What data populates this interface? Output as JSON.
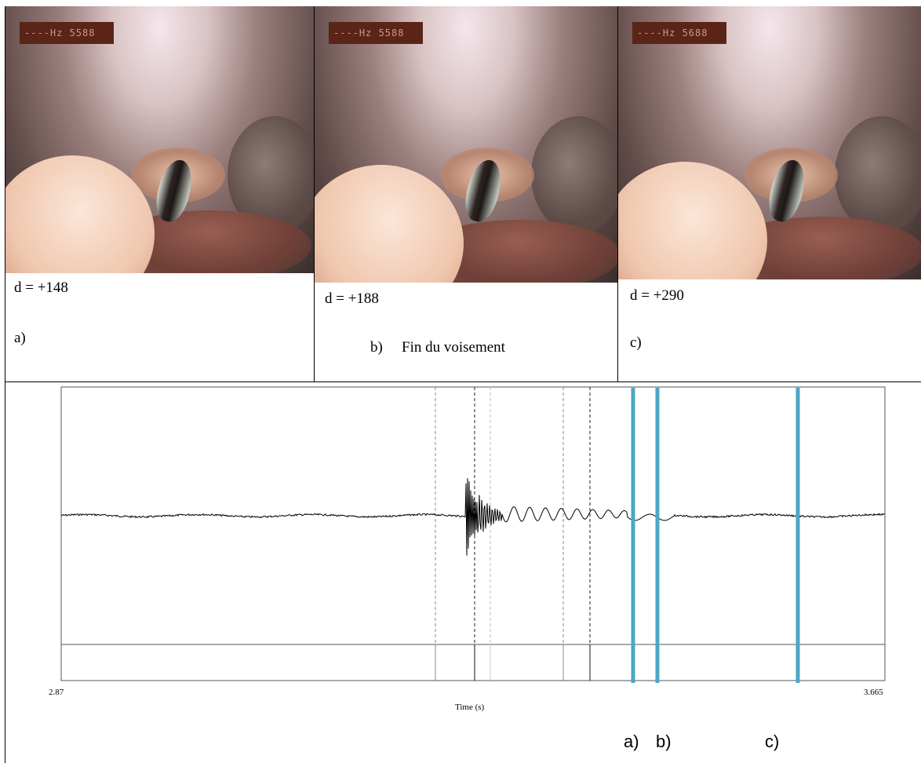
{
  "panels": [
    {
      "osd": "----Hz 5588",
      "d": "d = +148",
      "label": "a)",
      "extra": ""
    },
    {
      "osd": "----Hz 5588",
      "d": "d = +188",
      "label": "b)",
      "extra": "Fin du voisement"
    },
    {
      "osd": "----Hz 5688",
      "d": "d = +290",
      "label": "c)",
      "extra": ""
    }
  ],
  "waveform": {
    "x_min_label": "2.87",
    "x_max_label": "3.665",
    "xlabel": "Time (s)"
  },
  "marker_labels": {
    "a": "a)",
    "b": "b)",
    "c": "c)"
  },
  "colors": {
    "marker": "#4aa8c4",
    "waveform": "#000000"
  }
}
